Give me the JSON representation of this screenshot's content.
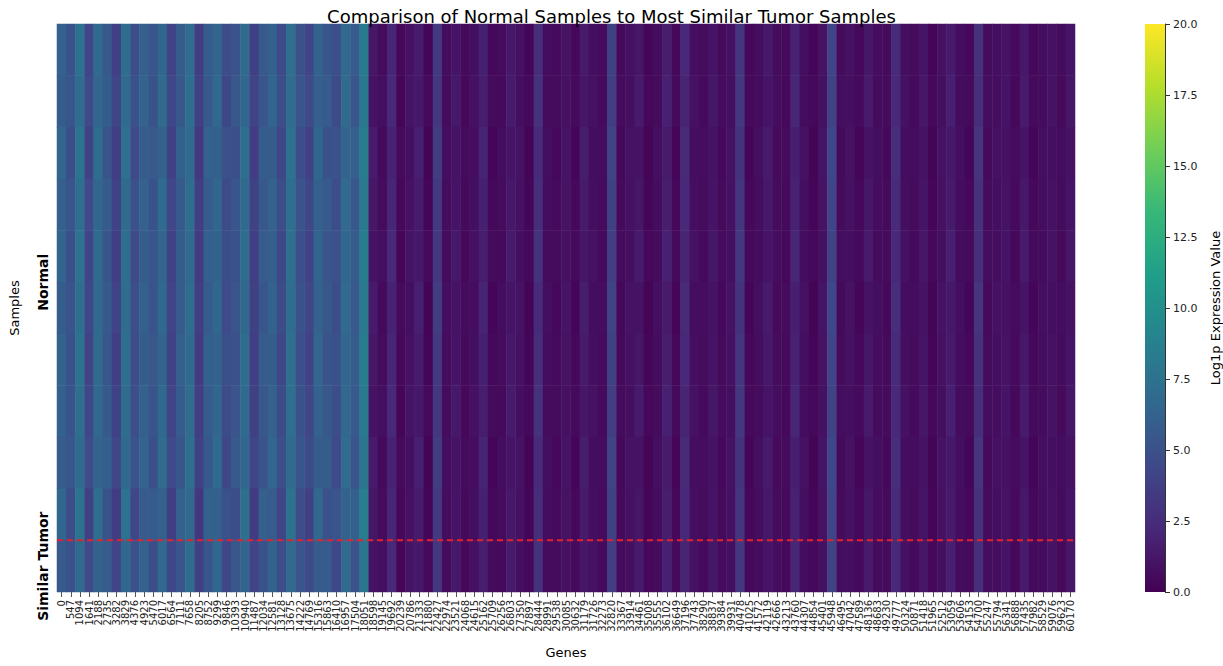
{
  "chart_data": {
    "type": "heatmap",
    "title": "Comparison of Normal Samples to Most Similar Tumor Samples",
    "x_label": "Genes",
    "y_label": "Samples",
    "categories": [
      0,
      547,
      1094,
      1641,
      2188,
      2735,
      3282,
      3829,
      4376,
      4923,
      5470,
      6017,
      6564,
      7111,
      7658,
      8205,
      8752,
      9299,
      9846,
      10393,
      10940,
      11487,
      12034,
      12581,
      13128,
      13675,
      14222,
      14769,
      15316,
      15863,
      16410,
      16957,
      17504,
      18051,
      18598,
      19145,
      19692,
      20239,
      20786,
      21333,
      21880,
      22427,
      22974,
      23521,
      24068,
      24615,
      25162,
      25709,
      26256,
      26803,
      27350,
      27897,
      28444,
      28991,
      29538,
      30085,
      30632,
      31179,
      31726,
      32273,
      32820,
      33367,
      33914,
      34461,
      35008,
      35555,
      36102,
      36649,
      37196,
      37743,
      38290,
      38837,
      39384,
      39931,
      40478,
      41025,
      41572,
      42119,
      42666,
      43213,
      43760,
      44307,
      44854,
      45401,
      45948,
      46495,
      47042,
      47589,
      48136,
      48683,
      49230,
      49777,
      50324,
      50871,
      51418,
      51965,
      52512,
      53059,
      53606,
      54153,
      54700,
      55247,
      55794,
      56341,
      56888,
      57435,
      57982,
      58529,
      59076,
      59623,
      60170
    ],
    "row_groups": [
      {
        "label": "Normal",
        "rows": 10
      },
      {
        "label": "Similar Tumor",
        "rows": 1
      }
    ],
    "cells": [
      [
        6.2,
        5.1,
        7.4,
        4.3,
        6.8,
        5.5,
        3.9,
        7.1,
        4.8,
        6.0,
        5.3,
        6.6,
        4.1,
        5.8,
        7.0,
        3.6,
        5.9,
        6.4,
        4.7,
        5.2,
        6.9,
        3.8,
        5.6,
        6.1,
        4.5,
        7.3,
        5.0,
        4.2,
        6.3,
        5.4,
        4.9,
        6.7,
        5.7,
        8.2,
        1.2,
        0.6,
        2.1,
        0.4,
        0.9,
        1.5,
        0.3,
        3.4,
        0.7,
        1.1,
        0.5,
        0.8,
        1.8,
        0.4,
        0.6,
        1.3,
        0.9,
        0.3,
        2.6,
        0.7,
        0.5,
        1.0,
        0.4,
        1.4,
        0.8,
        0.6,
        3.9,
        0.5,
        0.9,
        1.2,
        0.3,
        0.7,
        1.6,
        0.4,
        2.2,
        0.8,
        0.6,
        1.1,
        0.5,
        0.9,
        3.1,
        0.4,
        0.7,
        1.3,
        0.6,
        0.5,
        1.9,
        0.8,
        0.3,
        1.0,
        4.2,
        0.6,
        0.9,
        0.4,
        1.2,
        0.7,
        0.5,
        2.4,
        0.8,
        0.6,
        1.1,
        0.3,
        0.9,
        1.5,
        0.7,
        0.4,
        2.8,
        0.6,
        0.8,
        1.0,
        0.5,
        1.3,
        0.4,
        0.7,
        0.9,
        0.6,
        1.1
      ],
      [
        5.8,
        5.4,
        7.0,
        4.6,
        6.5,
        5.9,
        4.2,
        6.8,
        5.1,
        6.3,
        5.0,
        6.9,
        4.4,
        5.5,
        7.2,
        3.9,
        5.6,
        6.7,
        4.4,
        5.5,
        6.6,
        4.1,
        5.3,
        6.4,
        4.8,
        7.0,
        5.3,
        4.5,
        6.0,
        5.7,
        4.6,
        6.9,
        5.4,
        8.0,
        1.0,
        0.8,
        2.3,
        0.3,
        1.1,
        1.3,
        0.5,
        3.2,
        0.6,
        1.3,
        0.4,
        0.9,
        1.6,
        0.6,
        0.5,
        1.5,
        0.8,
        0.4,
        2.8,
        0.6,
        0.6,
        0.9,
        0.5,
        1.2,
        0.9,
        0.5,
        3.7,
        0.6,
        0.8,
        1.4,
        0.4,
        0.6,
        1.8,
        0.5,
        2.0,
        0.9,
        0.5,
        1.2,
        0.6,
        0.8,
        3.3,
        0.5,
        0.6,
        1.1,
        0.7,
        0.4,
        2.1,
        0.7,
        0.4,
        0.9,
        4.0,
        0.7,
        0.8,
        0.5,
        1.4,
        0.6,
        0.6,
        2.2,
        0.9,
        0.5,
        1.2,
        0.4,
        0.8,
        1.7,
        0.6,
        0.5,
        2.6,
        0.7,
        0.7,
        1.1,
        0.4,
        1.5,
        0.5,
        0.6,
        1.0,
        0.5,
        1.2
      ],
      [
        6.5,
        4.8,
        7.6,
        4.0,
        7.1,
        5.2,
        3.7,
        7.4,
        4.5,
        5.8,
        5.6,
        6.3,
        3.9,
        6.1,
        6.8,
        3.4,
        6.2,
        6.1,
        5.0,
        4.9,
        7.2,
        3.6,
        5.9,
        5.8,
        4.3,
        7.5,
        4.8,
        4.0,
        6.6,
        5.1,
        5.2,
        6.4,
        6.0,
        8.4,
        1.4,
        0.5,
        1.9,
        0.5,
        0.8,
        1.7,
        0.2,
        3.6,
        0.8,
        1.0,
        0.6,
        0.7,
        2.0,
        0.3,
        0.7,
        1.1,
        1.0,
        0.2,
        2.4,
        0.8,
        0.4,
        1.1,
        0.3,
        1.6,
        0.7,
        0.7,
        4.1,
        0.4,
        1.0,
        1.0,
        0.2,
        0.8,
        1.4,
        0.3,
        2.4,
        0.7,
        0.7,
        1.0,
        0.4,
        1.0,
        2.9,
        0.3,
        0.8,
        1.5,
        0.5,
        0.6,
        1.7,
        0.9,
        0.2,
        1.1,
        4.4,
        0.5,
        1.0,
        0.3,
        1.0,
        0.8,
        0.4,
        2.6,
        0.7,
        0.7,
        1.0,
        0.2,
        1.0,
        1.3,
        0.8,
        0.3,
        3.0,
        0.5,
        0.9,
        0.9,
        0.6,
        1.1,
        0.3,
        0.8,
        0.8,
        0.7,
        1.0
      ],
      [
        6.0,
        5.3,
        7.2,
        4.5,
        6.6,
        5.7,
        4.0,
        6.9,
        5.0,
        6.2,
        5.1,
        6.8,
        4.3,
        5.6,
        7.1,
        3.8,
        5.7,
        6.5,
        4.6,
        5.4,
        6.8,
        4.0,
        5.5,
        6.2,
        4.7,
        7.2,
        5.2,
        4.4,
        6.1,
        5.6,
        4.7,
        6.8,
        5.5,
        8.1,
        1.2,
        0.6,
        2.1,
        0.4,
        0.9,
        1.5,
        0.3,
        3.4,
        0.7,
        1.1,
        0.5,
        0.8,
        1.8,
        0.4,
        0.6,
        1.3,
        0.9,
        0.3,
        2.6,
        0.7,
        0.5,
        1.0,
        0.4,
        1.4,
        0.8,
        0.6,
        3.9,
        0.5,
        0.9,
        1.2,
        0.3,
        0.7,
        1.6,
        0.4,
        2.2,
        0.8,
        0.6,
        1.1,
        0.5,
        0.9,
        3.1,
        0.4,
        0.7,
        1.3,
        0.6,
        0.5,
        1.9,
        0.8,
        0.3,
        1.0,
        4.2,
        0.6,
        0.9,
        0.4,
        1.2,
        0.7,
        0.5,
        2.4,
        0.8,
        0.6,
        1.1,
        0.3,
        0.9,
        1.5,
        0.7,
        0.4,
        2.8,
        0.6,
        0.8,
        1.0,
        0.5,
        1.3,
        0.4,
        0.7,
        0.9,
        0.6,
        1.1
      ],
      [
        6.4,
        4.9,
        7.5,
        4.2,
        6.9,
        5.3,
        3.8,
        7.2,
        4.6,
        5.9,
        5.4,
        6.5,
        4.0,
        5.9,
        6.9,
        3.5,
        6.0,
        6.3,
        4.8,
        5.1,
        7.0,
        3.7,
        5.7,
        6.0,
        4.4,
        7.4,
        4.9,
        4.1,
        6.4,
        5.3,
        5.0,
        6.6,
        5.8,
        8.3,
        1.0,
        0.8,
        2.3,
        0.3,
        1.1,
        1.3,
        0.5,
        3.2,
        0.6,
        1.3,
        0.4,
        0.9,
        1.6,
        0.6,
        0.5,
        1.5,
        0.8,
        0.4,
        2.8,
        0.6,
        0.6,
        0.9,
        0.5,
        1.2,
        0.9,
        0.5,
        3.7,
        0.6,
        0.8,
        1.4,
        0.4,
        0.6,
        1.8,
        0.5,
        2.0,
        0.9,
        0.5,
        1.2,
        0.6,
        0.8,
        3.3,
        0.5,
        0.6,
        1.1,
        0.7,
        0.4,
        2.1,
        0.7,
        0.4,
        0.9,
        4.0,
        0.7,
        0.8,
        0.5,
        1.4,
        0.6,
        0.6,
        2.2,
        0.9,
        0.5,
        1.2,
        0.4,
        0.8,
        1.7,
        0.6,
        0.5,
        2.6,
        0.7,
        0.7,
        1.1,
        0.4,
        1.5,
        0.5,
        0.6,
        1.0,
        0.5,
        1.2
      ],
      [
        5.9,
        5.2,
        7.3,
        4.4,
        6.7,
        5.6,
        4.1,
        7.0,
        4.9,
        6.1,
        5.2,
        6.7,
        4.2,
        5.7,
        7.1,
        3.7,
        5.8,
        6.6,
        4.5,
        5.3,
        6.7,
        3.9,
        5.4,
        6.3,
        4.6,
        7.1,
        5.1,
        4.3,
        6.2,
        5.5,
        4.8,
        6.8,
        5.6,
        8.1,
        1.4,
        0.5,
        1.9,
        0.5,
        0.8,
        1.7,
        0.2,
        3.6,
        0.8,
        1.0,
        0.6,
        0.7,
        2.0,
        0.3,
        0.7,
        1.1,
        1.0,
        0.2,
        2.4,
        0.8,
        0.4,
        1.1,
        0.3,
        1.6,
        0.7,
        0.7,
        4.1,
        0.4,
        1.0,
        1.0,
        0.2,
        0.8,
        1.4,
        0.3,
        2.4,
        0.7,
        0.7,
        1.0,
        0.4,
        1.0,
        2.9,
        0.3,
        0.8,
        1.5,
        0.5,
        0.6,
        1.7,
        0.9,
        0.2,
        1.1,
        4.4,
        0.5,
        1.0,
        0.3,
        1.0,
        0.8,
        0.4,
        2.6,
        0.7,
        0.7,
        1.0,
        0.2,
        1.0,
        1.3,
        0.8,
        0.3,
        3.0,
        0.5,
        0.9,
        0.9,
        0.6,
        1.1,
        0.3,
        0.8,
        0.8,
        0.7,
        1.0
      ],
      [
        6.3,
        5.0,
        7.5,
        4.1,
        6.9,
        5.4,
        3.8,
        7.3,
        4.7,
        5.9,
        5.5,
        6.4,
        4.0,
        6.0,
        6.9,
        3.5,
        6.1,
        6.2,
        4.9,
        5.0,
        7.1,
        3.7,
        5.8,
        5.9,
        4.4,
        7.4,
        4.9,
        4.1,
        6.5,
        5.2,
        5.1,
        6.5,
        5.9,
        8.3,
        1.2,
        0.6,
        2.1,
        0.4,
        0.9,
        1.5,
        0.3,
        3.4,
        0.7,
        1.1,
        0.5,
        0.8,
        1.8,
        0.4,
        0.6,
        1.3,
        0.9,
        0.3,
        2.6,
        0.7,
        0.5,
        1.0,
        0.4,
        1.4,
        0.8,
        0.6,
        3.9,
        0.5,
        0.9,
        1.2,
        0.3,
        0.7,
        1.6,
        0.4,
        2.2,
        0.8,
        0.6,
        1.1,
        0.5,
        0.9,
        3.1,
        0.4,
        0.7,
        1.3,
        0.6,
        0.5,
        1.9,
        0.8,
        0.3,
        1.0,
        4.2,
        0.6,
        0.9,
        0.4,
        1.2,
        0.7,
        0.5,
        2.4,
        0.8,
        0.6,
        1.1,
        0.3,
        0.9,
        1.5,
        0.7,
        0.4,
        2.8,
        0.6,
        0.8,
        1.0,
        0.5,
        1.3,
        0.4,
        0.7,
        0.9,
        0.6,
        1.1
      ],
      [
        6.1,
        5.2,
        7.3,
        4.4,
        6.7,
        5.6,
        4.0,
        7.0,
        4.9,
        6.1,
        5.2,
        6.7,
        4.2,
        5.7,
        7.0,
        3.7,
        5.8,
        6.5,
        4.6,
        5.3,
        6.8,
        3.9,
        5.5,
        6.2,
        4.6,
        7.2,
        5.1,
        4.3,
        6.2,
        5.5,
        4.8,
        6.7,
        5.6,
        8.2,
        1.0,
        0.8,
        2.3,
        0.3,
        1.1,
        1.3,
        0.5,
        3.2,
        0.6,
        1.3,
        0.4,
        0.9,
        1.6,
        0.6,
        0.5,
        1.5,
        0.8,
        0.4,
        2.8,
        0.6,
        0.6,
        0.9,
        0.5,
        1.2,
        0.9,
        0.5,
        3.7,
        0.6,
        0.8,
        1.4,
        0.4,
        0.6,
        1.8,
        0.5,
        2.0,
        0.9,
        0.5,
        1.2,
        0.6,
        0.8,
        3.3,
        0.5,
        0.6,
        1.1,
        0.7,
        0.4,
        2.1,
        0.7,
        0.4,
        0.9,
        4.0,
        0.7,
        0.8,
        0.5,
        1.4,
        0.6,
        0.6,
        2.2,
        0.9,
        0.5,
        1.2,
        0.4,
        0.8,
        1.7,
        0.6,
        0.5,
        2.6,
        0.7,
        0.7,
        1.1,
        0.4,
        1.5,
        0.5,
        0.6,
        1.0,
        0.5,
        1.2
      ],
      [
        5.7,
        5.5,
        6.9,
        4.7,
        6.4,
        6.0,
        4.3,
        6.7,
        5.2,
        6.4,
        4.9,
        7.0,
        4.5,
        5.4,
        7.3,
        4.0,
        5.5,
        6.8,
        4.3,
        5.6,
        6.5,
        4.2,
        5.2,
        6.5,
        4.9,
        6.9,
        5.4,
        4.6,
        5.9,
        5.8,
        4.5,
        7.0,
        5.3,
        7.9,
        1.4,
        0.5,
        1.9,
        0.5,
        0.8,
        1.7,
        0.2,
        3.6,
        0.8,
        1.0,
        0.6,
        0.7,
        2.0,
        0.3,
        0.7,
        1.1,
        1.0,
        0.2,
        2.4,
        0.8,
        0.4,
        1.1,
        0.3,
        1.6,
        0.7,
        0.7,
        4.1,
        0.4,
        1.0,
        1.0,
        0.2,
        0.8,
        1.4,
        0.3,
        2.4,
        0.7,
        0.7,
        1.0,
        0.4,
        1.0,
        2.9,
        0.3,
        0.8,
        1.5,
        0.5,
        0.6,
        1.7,
        0.9,
        0.2,
        1.1,
        4.4,
        0.5,
        1.0,
        0.3,
        1.0,
        0.8,
        0.4,
        2.6,
        0.7,
        0.7,
        1.0,
        0.2,
        1.0,
        1.3,
        0.8,
        0.3,
        3.0,
        0.5,
        0.9,
        0.9,
        0.6,
        1.1,
        0.3,
        0.8,
        0.8,
        0.7,
        1.0
      ],
      [
        6.6,
        4.7,
        7.7,
        3.9,
        7.2,
        5.1,
        3.6,
        7.5,
        4.4,
        5.7,
        5.7,
        6.2,
        3.8,
        6.2,
        6.7,
        3.3,
        6.3,
        6.0,
        5.1,
        4.8,
        7.3,
        3.5,
        6.0,
        5.7,
        4.2,
        7.6,
        4.7,
        3.9,
        6.7,
        5.0,
        5.3,
        6.3,
        6.1,
        8.5,
        1.2,
        0.6,
        2.1,
        0.4,
        0.9,
        1.5,
        0.3,
        3.4,
        0.7,
        1.1,
        0.5,
        0.8,
        1.8,
        0.4,
        0.6,
        1.3,
        0.9,
        0.3,
        2.6,
        0.7,
        0.5,
        1.0,
        0.4,
        1.4,
        0.8,
        0.6,
        3.9,
        0.5,
        0.9,
        1.2,
        0.3,
        0.7,
        1.6,
        0.4,
        2.2,
        0.8,
        0.6,
        1.1,
        0.5,
        0.9,
        3.1,
        0.4,
        0.7,
        1.3,
        0.6,
        0.5,
        1.9,
        0.8,
        0.3,
        1.0,
        4.2,
        0.6,
        0.9,
        0.4,
        1.2,
        0.7,
        0.5,
        2.4,
        0.8,
        0.6,
        1.1,
        0.3,
        0.9,
        1.5,
        0.7,
        0.4,
        2.8,
        0.6,
        0.8,
        1.0,
        0.5,
        1.3,
        0.4,
        0.7,
        0.9,
        0.6,
        1.1
      ],
      [
        5.6,
        5.0,
        6.8,
        4.5,
        6.3,
        5.8,
        4.2,
        6.6,
        5.0,
        6.2,
        4.8,
        6.8,
        4.4,
        5.3,
        7.1,
        3.9,
        5.4,
        6.6,
        4.3,
        5.5,
        6.4,
        4.1,
        5.1,
        6.3,
        4.8,
        6.8,
        5.3,
        4.5,
        5.8,
        5.7,
        4.4,
        6.9,
        5.2,
        7.8,
        1.0,
        0.8,
        2.3,
        0.3,
        1.1,
        1.3,
        0.5,
        3.2,
        0.6,
        1.3,
        0.4,
        0.9,
        1.6,
        0.6,
        0.5,
        1.5,
        0.8,
        0.4,
        2.8,
        0.6,
        0.6,
        0.9,
        0.5,
        1.2,
        0.9,
        0.5,
        3.7,
        0.6,
        0.8,
        1.4,
        0.4,
        0.6,
        1.8,
        0.5,
        2.0,
        0.9,
        0.5,
        1.2,
        0.6,
        0.8,
        3.3,
        0.5,
        0.6,
        1.1,
        0.7,
        0.4,
        2.1,
        0.7,
        0.4,
        0.9,
        4.0,
        0.7,
        0.8,
        0.5,
        1.4,
        0.6,
        0.6,
        2.2,
        0.9,
        0.5,
        1.2,
        0.4,
        0.8,
        1.7,
        0.6,
        0.5,
        2.6,
        0.7,
        0.7,
        1.1,
        0.4,
        1.5,
        0.5,
        0.6,
        1.0,
        0.5,
        1.2
      ]
    ],
    "colorbar": {
      "label": "Log1p Expression Value",
      "range": [
        0,
        20
      ],
      "ticks": [
        {
          "value": 0,
          "label": "0.0"
        },
        {
          "value": 2.5,
          "label": "2.5"
        },
        {
          "value": 5,
          "label": "5.0"
        },
        {
          "value": 7.5,
          "label": "7.5"
        },
        {
          "value": 10,
          "label": "10.0"
        },
        {
          "value": 12.5,
          "label": "12.5"
        },
        {
          "value": 15,
          "label": "15.0"
        },
        {
          "value": 17.5,
          "label": "17.5"
        },
        {
          "value": 20,
          "label": "20.0"
        }
      ]
    }
  }
}
